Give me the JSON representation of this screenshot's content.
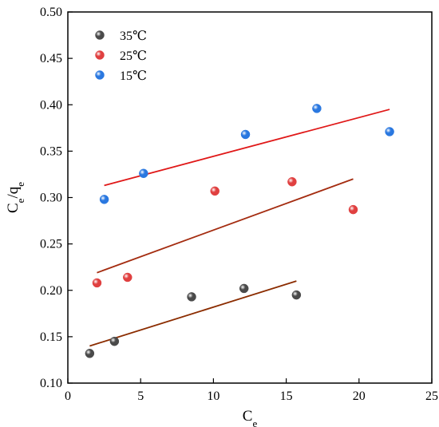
{
  "chart_data": {
    "type": "scatter",
    "title": "",
    "xlabel": {
      "main": "C",
      "sub": "e"
    },
    "ylabel": {
      "parts": [
        {
          "main": "C",
          "sub": "e"
        },
        {
          "main": "/q",
          "sub": "e"
        }
      ]
    },
    "xlim": [
      0,
      25
    ],
    "ylim": [
      0.1,
      0.5
    ],
    "xticks": [
      0,
      5,
      10,
      15,
      20,
      25
    ],
    "yticks": [
      0.1,
      0.15,
      0.2,
      0.25,
      0.3,
      0.35,
      0.4,
      0.45,
      0.5
    ],
    "xtick_labels": [
      "0",
      "5",
      "10",
      "15",
      "20",
      "25"
    ],
    "ytick_labels": [
      "0.10",
      "0.15",
      "0.20",
      "0.25",
      "0.30",
      "0.35",
      "0.40",
      "0.45",
      "0.50"
    ],
    "grid": false,
    "legend_position": "top-left",
    "series": [
      {
        "name": "35℃",
        "marker_color": "#4a4a4a",
        "line_color": "#8b2c00",
        "points": [
          [
            1.5,
            0.132
          ],
          [
            3.2,
            0.145
          ],
          [
            8.5,
            0.193
          ],
          [
            12.1,
            0.202
          ],
          [
            15.7,
            0.195
          ]
        ],
        "fit_line": [
          [
            1.5,
            0.14
          ],
          [
            15.7,
            0.21
          ]
        ]
      },
      {
        "name": "25℃",
        "marker_color": "#e04040",
        "line_color": "#a42c10",
        "points": [
          [
            2.0,
            0.208
          ],
          [
            4.1,
            0.214
          ],
          [
            10.1,
            0.307
          ],
          [
            15.4,
            0.317
          ],
          [
            19.6,
            0.287
          ]
        ],
        "fit_line": [
          [
            2.0,
            0.219
          ],
          [
            19.6,
            0.32
          ]
        ]
      },
      {
        "name": "15℃",
        "marker_color": "#2a78e0",
        "line_color": "#e01818",
        "points": [
          [
            2.5,
            0.298
          ],
          [
            5.2,
            0.326
          ],
          [
            12.2,
            0.368
          ],
          [
            17.1,
            0.396
          ],
          [
            22.1,
            0.371
          ]
        ],
        "fit_line": [
          [
            2.5,
            0.313
          ],
          [
            22.1,
            0.395
          ]
        ]
      }
    ]
  }
}
